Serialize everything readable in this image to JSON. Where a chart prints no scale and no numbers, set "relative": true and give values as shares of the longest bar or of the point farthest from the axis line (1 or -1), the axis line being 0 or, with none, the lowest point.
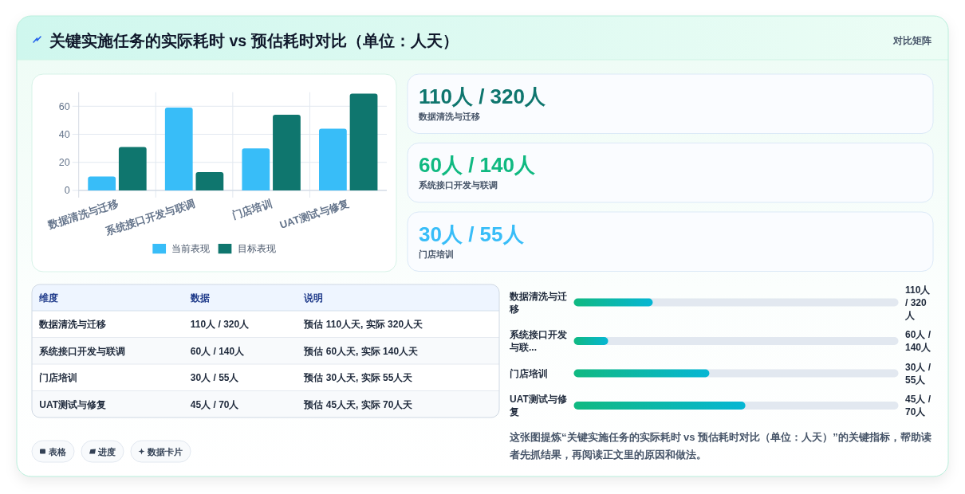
{
  "chart_data": [
    {
      "type": "bar",
      "title": "关键实施任务的实际耗时 vs 预估耗时对比（单位：人天）",
      "categories": [
        "数据清洗与迁移",
        "系统接口开发与联调",
        "门店培训",
        "UAT测试与修复"
      ],
      "series": [
        {
          "name": "当前表现",
          "color": "#38bdf8",
          "values": [
            10,
            59,
            30,
            44
          ]
        },
        {
          "name": "目标表现",
          "color": "#0f766e",
          "values": [
            31,
            13,
            54,
            69
          ]
        }
      ],
      "ylim": [
        0,
        70
      ],
      "yticks": [
        0,
        20,
        40,
        60
      ],
      "grid": true,
      "legend": "bottom"
    },
    {
      "type": "other",
      "subtitle": "对比矩阵",
      "categories": [
        "数据清洗与迁移",
        "系统接口开发与联调",
        "门店培训"
      ],
      "value_labels": [
        "110人 / 320人",
        "60人 / 140人",
        "30人 / 55人"
      ]
    },
    {
      "type": "other",
      "categories": [
        "维度",
        "数据",
        "说明"
      ],
      "cell_labels": [
        [
          "数据清洗与迁移",
          "110人 / 320人",
          "预估 110人天, 实际 320人天"
        ],
        [
          "系统接口开发与联调",
          "60人 / 140人",
          "预估 60人天, 实际 140人天"
        ],
        [
          "门店培训",
          "30人 / 55人",
          "预估 30人天, 实际 55人天"
        ],
        [
          "UAT测试与修复",
          "45人 / 70人",
          "预估 45人天, 实际 70人天"
        ]
      ]
    },
    {
      "type": "bar",
      "orientation": "horizontal",
      "relative": true,
      "categories": [
        "数据清洗与迁移",
        "系统接口开发与联...",
        "门店培训",
        "UAT测试与修复"
      ],
      "y2_categories": [
        "110人 / 320人",
        "60人 / 140人",
        "30人 / 55人",
        "45人 / 70人"
      ],
      "values": [
        0.46,
        0.2,
        0.79,
        1
      ],
      "color": "#10b981",
      "annotations": [
        "这张图提炼“关键实施任务的实际耗时 vs 预估耗时对比（单位：人天）”的关键指标，帮助读者先抓结果，再阅读正文里的原因和做法。"
      ]
    },
    {
      "type": "other",
      "annotations": [
        "表格",
        "进度",
        "数据卡片"
      ]
    }
  ]
}
